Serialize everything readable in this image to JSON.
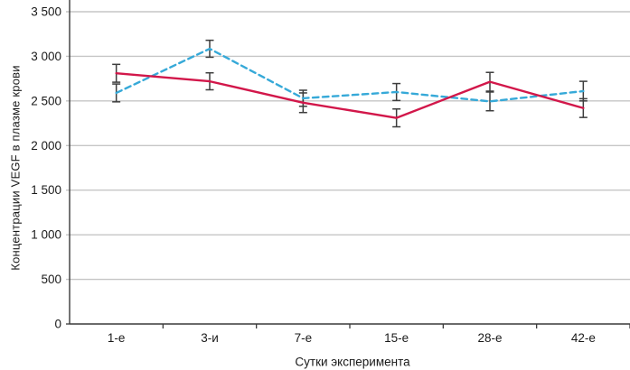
{
  "chart_data": {
    "type": "line",
    "title": "",
    "xlabel": "Сутки эксперимента",
    "ylabel": "Концентрации VEGF в плазме крови",
    "categories": [
      "1-е",
      "3-и",
      "7-е",
      "15-е",
      "28-е",
      "42-е"
    ],
    "series": [
      {
        "name": "blue-dashed-series",
        "style": "dashed",
        "color": "#36a9d8",
        "values": [
          2590,
          3085,
          2530,
          2600,
          2495,
          2610
        ],
        "errors": [
          100,
          95,
          90,
          95,
          105,
          110
        ]
      },
      {
        "name": "red-solid-series",
        "style": "solid",
        "color": "#d2174a",
        "values": [
          2810,
          2720,
          2480,
          2310,
          2715,
          2420
        ],
        "errors": [
          100,
          95,
          110,
          100,
          105,
          105
        ]
      }
    ],
    "ylim": [
      0,
      3500
    ],
    "ytick_step": 500,
    "ytick_labels": [
      "0",
      "500",
      "1 000",
      "1 500",
      "2 000",
      "2 500",
      "3 000",
      "3 500"
    ],
    "grid": true,
    "legend": "none",
    "colors": {
      "grid": "#c6c6c6",
      "axis": "#3a3a3a",
      "error_bar": "#3d3d3d",
      "text": "#1a1a1a"
    }
  }
}
